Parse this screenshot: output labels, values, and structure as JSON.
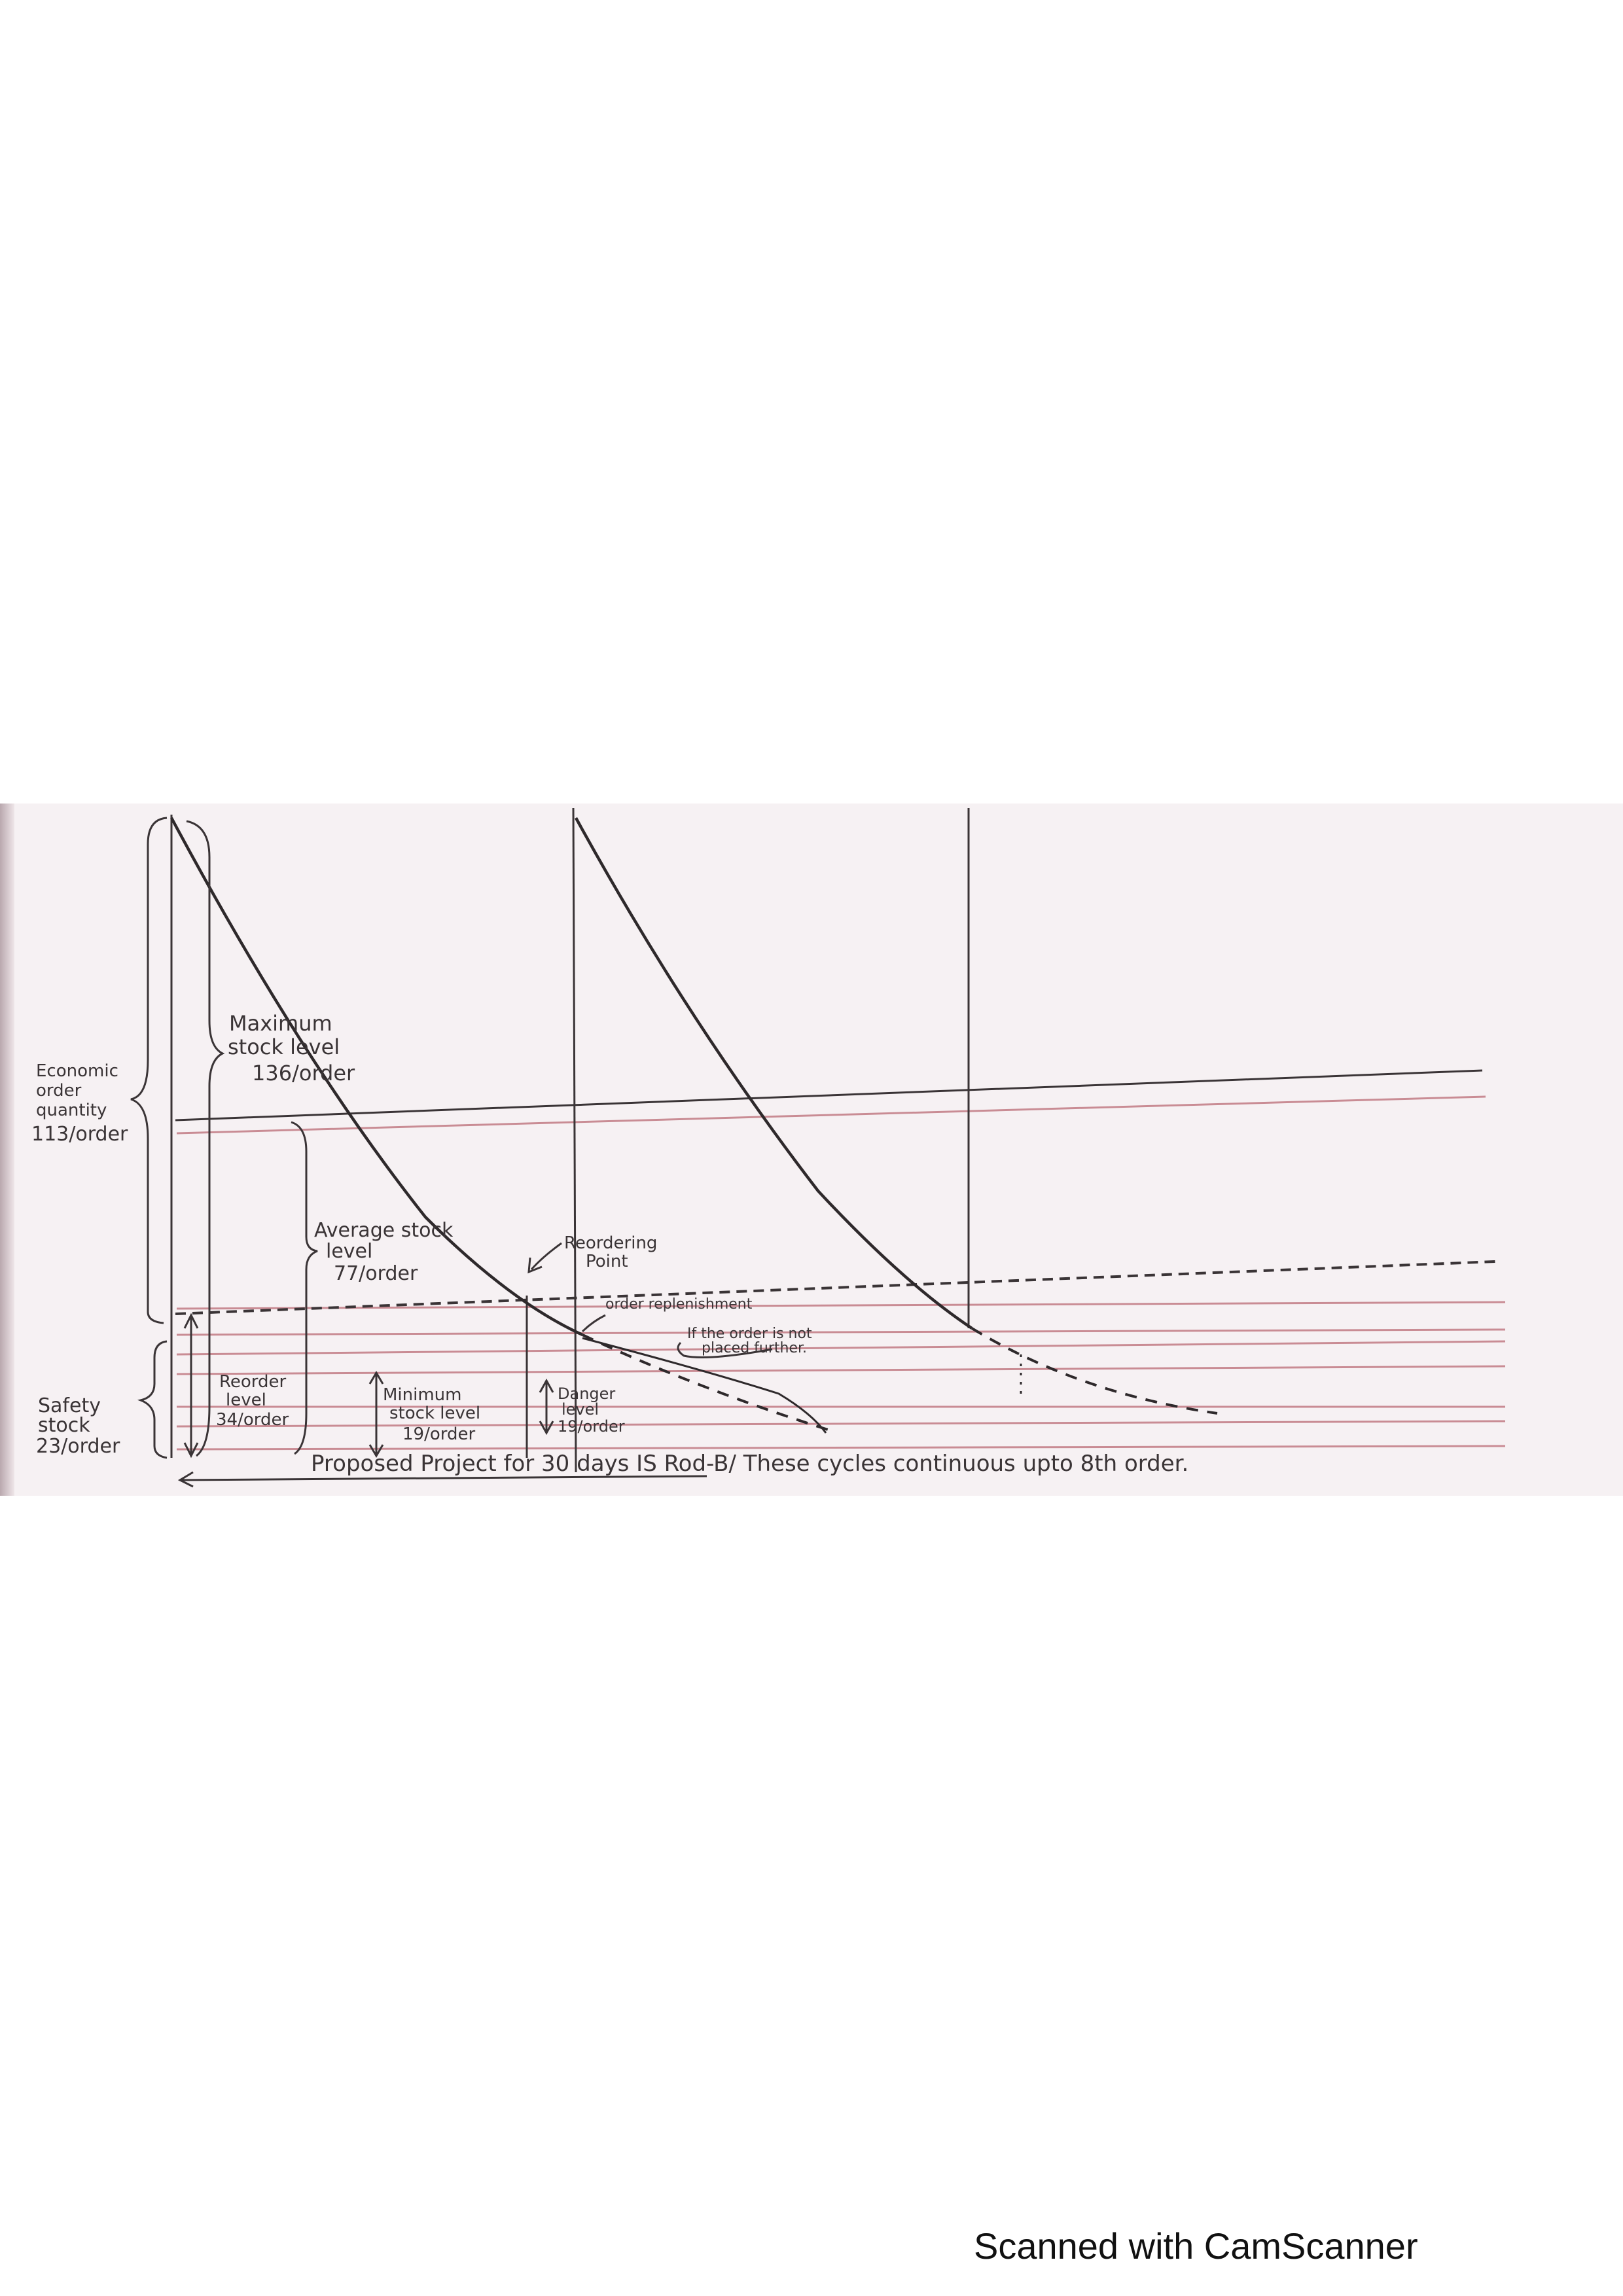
{
  "diagram": {
    "labels": {
      "eoq": [
        "Economic",
        "order",
        "quantity",
        "113/order"
      ],
      "max_stock": [
        "Maximum",
        "stock level",
        "136/order"
      ],
      "avg_stock": [
        "Average stock",
        "level",
        "77/order"
      ],
      "reorder_point": [
        "Reordering",
        "Point"
      ],
      "order_replenishment": "order replenishment",
      "if_not_placed": [
        "If the order is not",
        "placed further."
      ],
      "safety_stock": [
        "Safety",
        "stock",
        "23/order"
      ],
      "reorder_level": [
        "Reorder",
        "level",
        "34/order"
      ],
      "min_stock": [
        "Minimum",
        "stock level",
        "19/order"
      ],
      "danger_level": [
        "Danger",
        "level",
        "19/order"
      ],
      "bottom_caption": "Proposed Project for 30 days IS Rod-B/ These cycles continuous upto 8th order."
    },
    "colors": {
      "pencil": "#3a3436",
      "red_ruling": "#c98c94",
      "paper": "#f6f1f3"
    }
  },
  "footer": {
    "watermark": "Scanned with CamScanner"
  }
}
